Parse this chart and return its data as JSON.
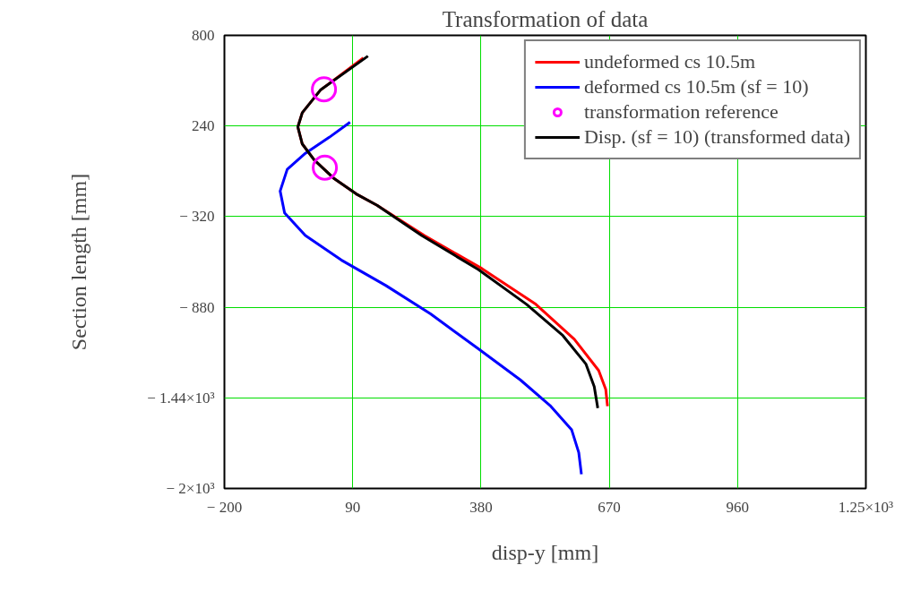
{
  "chart_data": {
    "type": "line",
    "title": "Transformation of data",
    "xlabel": "disp-y [mm]",
    "ylabel": "Section length [mm]",
    "xlim": [
      -200,
      1250
    ],
    "ylim": [
      -2000,
      800
    ],
    "xticks": [
      {
        "value": -200,
        "label": "− 200"
      },
      90,
      380,
      670,
      960,
      {
        "value": 1250,
        "label": "1.25×10³"
      }
    ],
    "yticks": [
      {
        "value": -2000,
        "label": "− 2×10³"
      },
      {
        "value": -1440,
        "label": "− 1.44×10³"
      },
      {
        "value": -880,
        "label": "− 880"
      },
      {
        "value": -320,
        "label": "− 320"
      },
      240,
      800
    ],
    "grid": true,
    "legend": "top right",
    "series": [
      {
        "name": "undeformed cs 10.5m",
        "color": "#ff0000",
        "x": [
          114,
          17,
          -24,
          -34,
          -24,
          3,
          49,
          98,
          145,
          252,
          382,
          504,
          591,
          646,
          662,
          666
        ],
        "values": [
          660,
          462,
          322,
          234,
          129,
          30,
          -87,
          -180,
          -250,
          -437,
          -641,
          -862,
          -1078,
          -1271,
          -1387,
          -1492
        ]
      },
      {
        "name": "deformed cs 10.5m (sf = 10)",
        "color": "#0000ff",
        "x": [
          84,
          37,
          -17,
          -58,
          -74,
          -64,
          -17,
          64,
          165,
          266,
          374,
          469,
          536,
          585,
          601,
          607
        ],
        "values": [
          263,
          170,
          71,
          -28,
          -162,
          -297,
          -437,
          -588,
          -746,
          -921,
          -1137,
          -1329,
          -1487,
          -1638,
          -1778,
          -1912
        ]
      },
      {
        "name": "transformation reference",
        "type": "scatter",
        "color": "#ff00ff",
        "x": [
          25,
          27
        ],
        "values": [
          467,
          -17
        ]
      },
      {
        "name": "Disp. (sf = 10) (transformed data)",
        "color": "#000000",
        "x": [
          124.5,
          17,
          -24,
          -34,
          -24,
          3,
          49,
          98,
          145,
          246,
          374,
          483,
          565,
          617,
          636,
          644
        ],
        "values": [
          672,
          462,
          322,
          234,
          129,
          30,
          -87,
          -180,
          -250,
          -437,
          -647,
          -862,
          -1055,
          -1230,
          -1370,
          -1504
        ]
      }
    ]
  }
}
